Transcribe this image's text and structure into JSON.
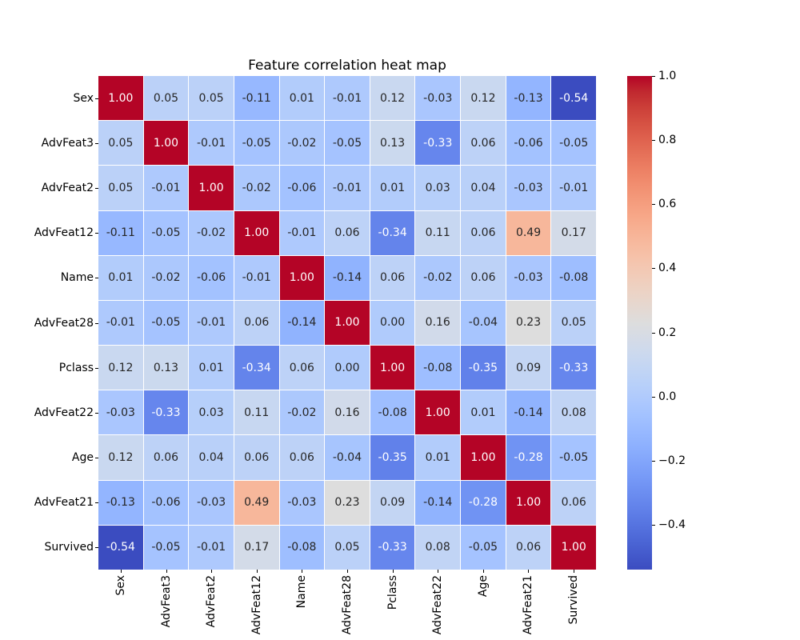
{
  "figure": {
    "background": "#ffffff",
    "text_color": "#000000"
  },
  "chart_data": {
    "type": "heatmap",
    "title": "Feature correlation heat map",
    "categories": [
      "Sex",
      "AdvFeat3",
      "AdvFeat2",
      "AdvFeat12",
      "Name",
      "AdvFeat28",
      "Pclass",
      "AdvFeat22",
      "Age",
      "AdvFeat21",
      "Survived"
    ],
    "matrix": [
      [
        1.0,
        0.05,
        0.05,
        -0.11,
        0.01,
        -0.01,
        0.12,
        -0.03,
        0.12,
        -0.13,
        -0.54
      ],
      [
        0.05,
        1.0,
        -0.01,
        -0.05,
        -0.02,
        -0.05,
        0.13,
        -0.33,
        0.06,
        -0.06,
        -0.05
      ],
      [
        0.05,
        -0.01,
        1.0,
        -0.02,
        -0.06,
        -0.01,
        0.01,
        0.03,
        0.04,
        -0.03,
        -0.01
      ],
      [
        -0.11,
        -0.05,
        -0.02,
        1.0,
        -0.01,
        0.06,
        -0.34,
        0.11,
        0.06,
        0.49,
        0.17
      ],
      [
        0.01,
        -0.02,
        -0.06,
        -0.01,
        1.0,
        -0.14,
        0.06,
        -0.02,
        0.06,
        -0.03,
        -0.08
      ],
      [
        -0.01,
        -0.05,
        -0.01,
        0.06,
        -0.14,
        1.0,
        0.0,
        0.16,
        -0.04,
        0.23,
        0.05
      ],
      [
        0.12,
        0.13,
        0.01,
        -0.34,
        0.06,
        0.0,
        1.0,
        -0.08,
        -0.35,
        0.09,
        -0.33
      ],
      [
        -0.03,
        -0.33,
        0.03,
        0.11,
        -0.02,
        0.16,
        -0.08,
        1.0,
        0.01,
        -0.14,
        0.08
      ],
      [
        0.12,
        0.06,
        0.04,
        0.06,
        0.06,
        -0.04,
        -0.35,
        0.01,
        1.0,
        -0.28,
        -0.05
      ],
      [
        -0.13,
        -0.06,
        -0.03,
        0.49,
        -0.03,
        0.23,
        0.09,
        -0.14,
        -0.28,
        1.0,
        0.06
      ],
      [
        -0.54,
        -0.05,
        -0.01,
        0.17,
        -0.08,
        0.05,
        -0.33,
        0.08,
        -0.05,
        0.06,
        1.0
      ]
    ],
    "value_decimals": 2,
    "vmin": -0.54,
    "vmax": 1.0,
    "colormap": "coolwarm",
    "colormap_anchors": [
      "#3b4cc0",
      "#445acc",
      "#4d68d7",
      "#5775e1",
      "#6282ea",
      "#6c8ef1",
      "#779af7",
      "#82a5fb",
      "#8db0fe",
      "#98b9ff",
      "#a3c2ff",
      "#aec9fd",
      "#b8d0f9",
      "#c2d5f4",
      "#ccd9ee",
      "#d5dbe6",
      "#dddddd",
      "#e5d8d1",
      "#ecd3c5",
      "#f1ccb9",
      "#f5c4ad",
      "#f7bba0",
      "#f7b194",
      "#f7a687",
      "#f49a7b",
      "#f18d6f",
      "#ec7f63",
      "#e57058",
      "#de604d",
      "#d55042",
      "#cb3e38",
      "#c0282f",
      "#b40426"
    ],
    "grid_line_color": "#ffffff",
    "annotation_color_light": "#ffffff",
    "annotation_color_dark": "#262626",
    "legend_position": "right-colorbar",
    "colorbar": {
      "tick_labels": [
        "1.0",
        "0.8",
        "0.6",
        "0.4",
        "0.2",
        "0.0",
        "−0.2",
        "−0.4"
      ],
      "tick_values": [
        1.0,
        0.8,
        0.6,
        0.4,
        0.2,
        0.0,
        -0.2,
        -0.4
      ]
    }
  }
}
